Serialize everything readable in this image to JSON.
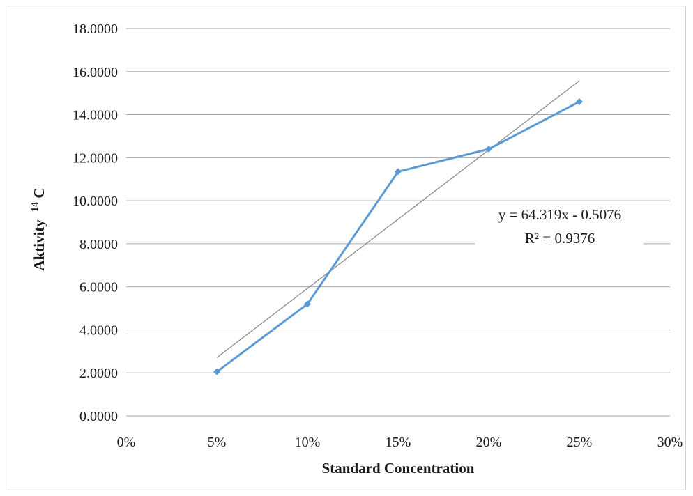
{
  "chart_data": {
    "type": "line",
    "xlabel": "Standard Concentration",
    "ylabel_main": "Aktivity",
    "ylabel_sup": "14",
    "ylabel_tail": "C",
    "x_ticks": [
      "0%",
      "5%",
      "10%",
      "15%",
      "20%",
      "25%",
      "30%"
    ],
    "y_ticks": [
      "0.0000",
      "2.0000",
      "4.0000",
      "6.0000",
      "8.0000",
      "10.0000",
      "12.0000",
      "14.0000",
      "16.0000",
      "18.0000"
    ],
    "xlim": [
      0,
      0.3
    ],
    "ylim": [
      0,
      18
    ],
    "grid": "horizontal",
    "series": [
      {
        "x": [
          0.05,
          0.1,
          0.15,
          0.2,
          0.25
        ],
        "values": [
          2.05,
          5.2,
          11.35,
          12.4,
          14.6
        ],
        "color": "#5b9bd5",
        "marker": "diamond"
      }
    ],
    "trendline": {
      "type": "linear",
      "slope": 64.319,
      "intercept": -0.5076,
      "x_range": [
        0.05,
        0.25
      ],
      "color": "#8c8c8c",
      "equation": "y = 64.319x - 0.5076",
      "r_squared": "R² = 0.9376"
    }
  }
}
